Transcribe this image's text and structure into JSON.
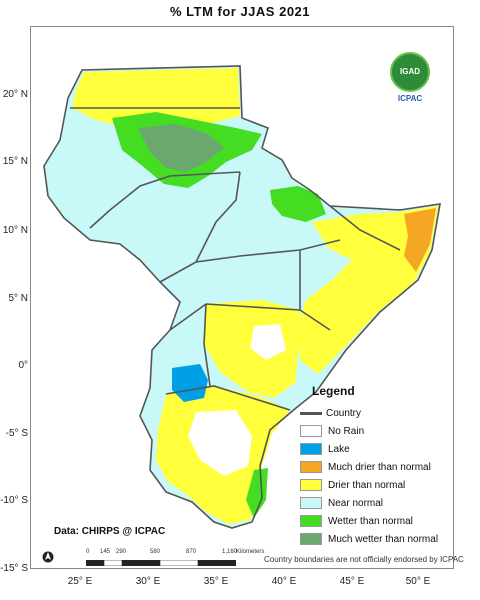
{
  "title": "% LTM  for  JJAS  2021",
  "logo": {
    "badge": "IGAD",
    "caption": "ICPAC"
  },
  "latitude_labels": [
    "20° N",
    "15° N",
    "10° N",
    "5° N",
    "0°",
    "-5° S",
    "-10° S",
    "-15° S"
  ],
  "longitude_labels": [
    "25° E",
    "30° E",
    "35° E",
    "40° E",
    "45° E",
    "50° E"
  ],
  "legend": {
    "title": "Legend",
    "country_label": "Country",
    "items": [
      {
        "label": "No Rain",
        "color": "#ffffff"
      },
      {
        "label": "Lake",
        "color": "#00a0e6"
      },
      {
        "label": "Much drier than normal",
        "color": "#f5a623"
      },
      {
        "label": "Drier than normal",
        "color": "#ffff3c"
      },
      {
        "label": "Near normal",
        "color": "#c8f8f8"
      },
      {
        "label": "Wetter than normal",
        "color": "#44dd22"
      },
      {
        "label": "Much wetter than normal",
        "color": "#6aa870"
      }
    ]
  },
  "data_credit": "Data: CHIRPS @ ICPAC",
  "scale": {
    "ticks": [
      "0",
      "145",
      "290",
      "580",
      "870",
      "1,160"
    ],
    "unit": "Kilometers"
  },
  "disclaimer": "Country boundaries are not officially endorsed by ICPAC"
}
